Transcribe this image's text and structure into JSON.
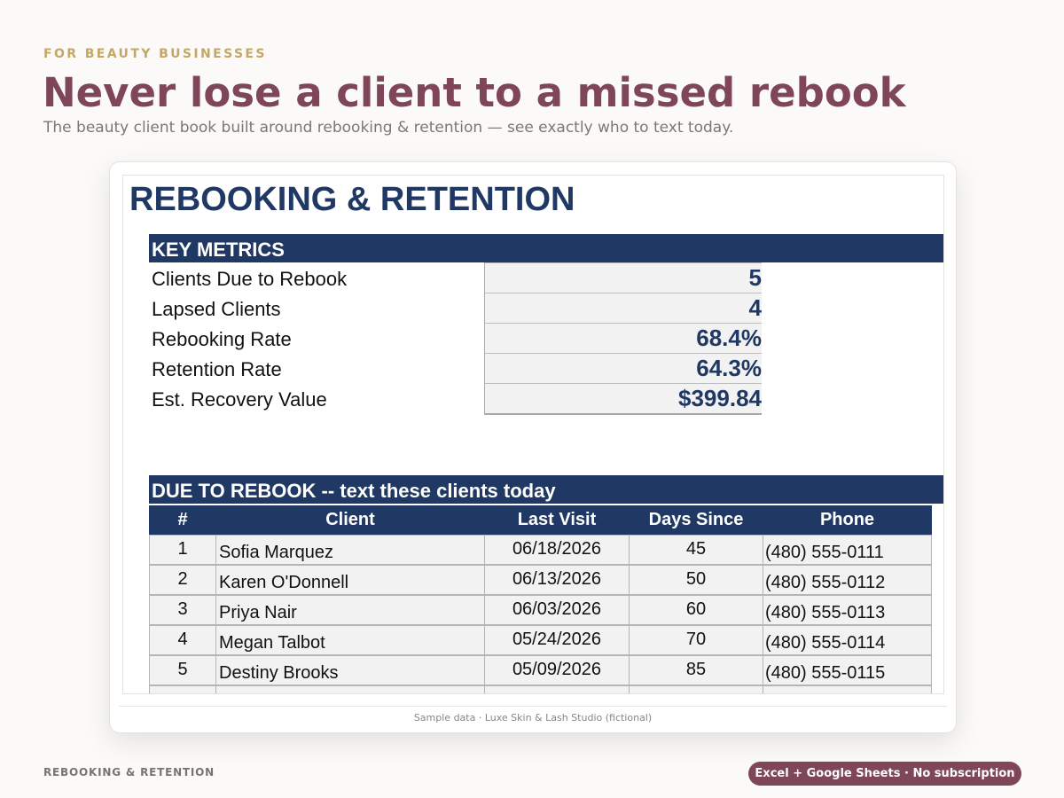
{
  "hero": {
    "eyebrow": "FOR BEAUTY BUSINESSES",
    "headline": "Never lose a client to a missed rebook",
    "subhead": "The beauty client book built around rebooking & retention — see exactly who to text today."
  },
  "sheet": {
    "title": "REBOOKING & RETENTION",
    "key_metrics": {
      "header": "KEY METRICS",
      "items": [
        {
          "label": "Clients Due to Rebook",
          "value": "5"
        },
        {
          "label": "Lapsed Clients",
          "value": "4"
        },
        {
          "label": "Rebooking Rate",
          "value": "68.4%"
        },
        {
          "label": "Retention Rate",
          "value": "64.3%"
        },
        {
          "label": "Est. Recovery Value",
          "value": "$399.84"
        }
      ]
    },
    "due": {
      "header": "DUE TO REBOOK -- text these clients today",
      "columns": [
        "#",
        "Client",
        "Last Visit",
        "Days Since",
        "Phone"
      ],
      "rows": [
        {
          "num": "1",
          "client": "Sofia Marquez",
          "last_visit": "06/18/2026",
          "days": "45",
          "phone": "(480) 555-0111"
        },
        {
          "num": "2",
          "client": "Karen O'Donnell",
          "last_visit": "06/13/2026",
          "days": "50",
          "phone": "(480) 555-0112"
        },
        {
          "num": "3",
          "client": "Priya Nair",
          "last_visit": "06/03/2026",
          "days": "60",
          "phone": "(480) 555-0113"
        },
        {
          "num": "4",
          "client": "Megan Talbot",
          "last_visit": "05/24/2026",
          "days": "70",
          "phone": "(480) 555-0114"
        },
        {
          "num": "5",
          "client": "Destiny Brooks",
          "last_visit": "05/09/2026",
          "days": "85",
          "phone": "(480) 555-0115"
        },
        {
          "num": "",
          "client": "",
          "last_visit": "",
          "days": "",
          "phone": ""
        }
      ]
    }
  },
  "card_caption": "Sample data · Luxe Skin & Lash Studio (fictional)",
  "footer": {
    "left": "REBOOKING & RETENTION",
    "pill": "Excel + Google Sheets · No subscription"
  },
  "colors": {
    "brand": "#7e4658",
    "accent_gold": "#c4a765",
    "navy": "#1f3864"
  }
}
